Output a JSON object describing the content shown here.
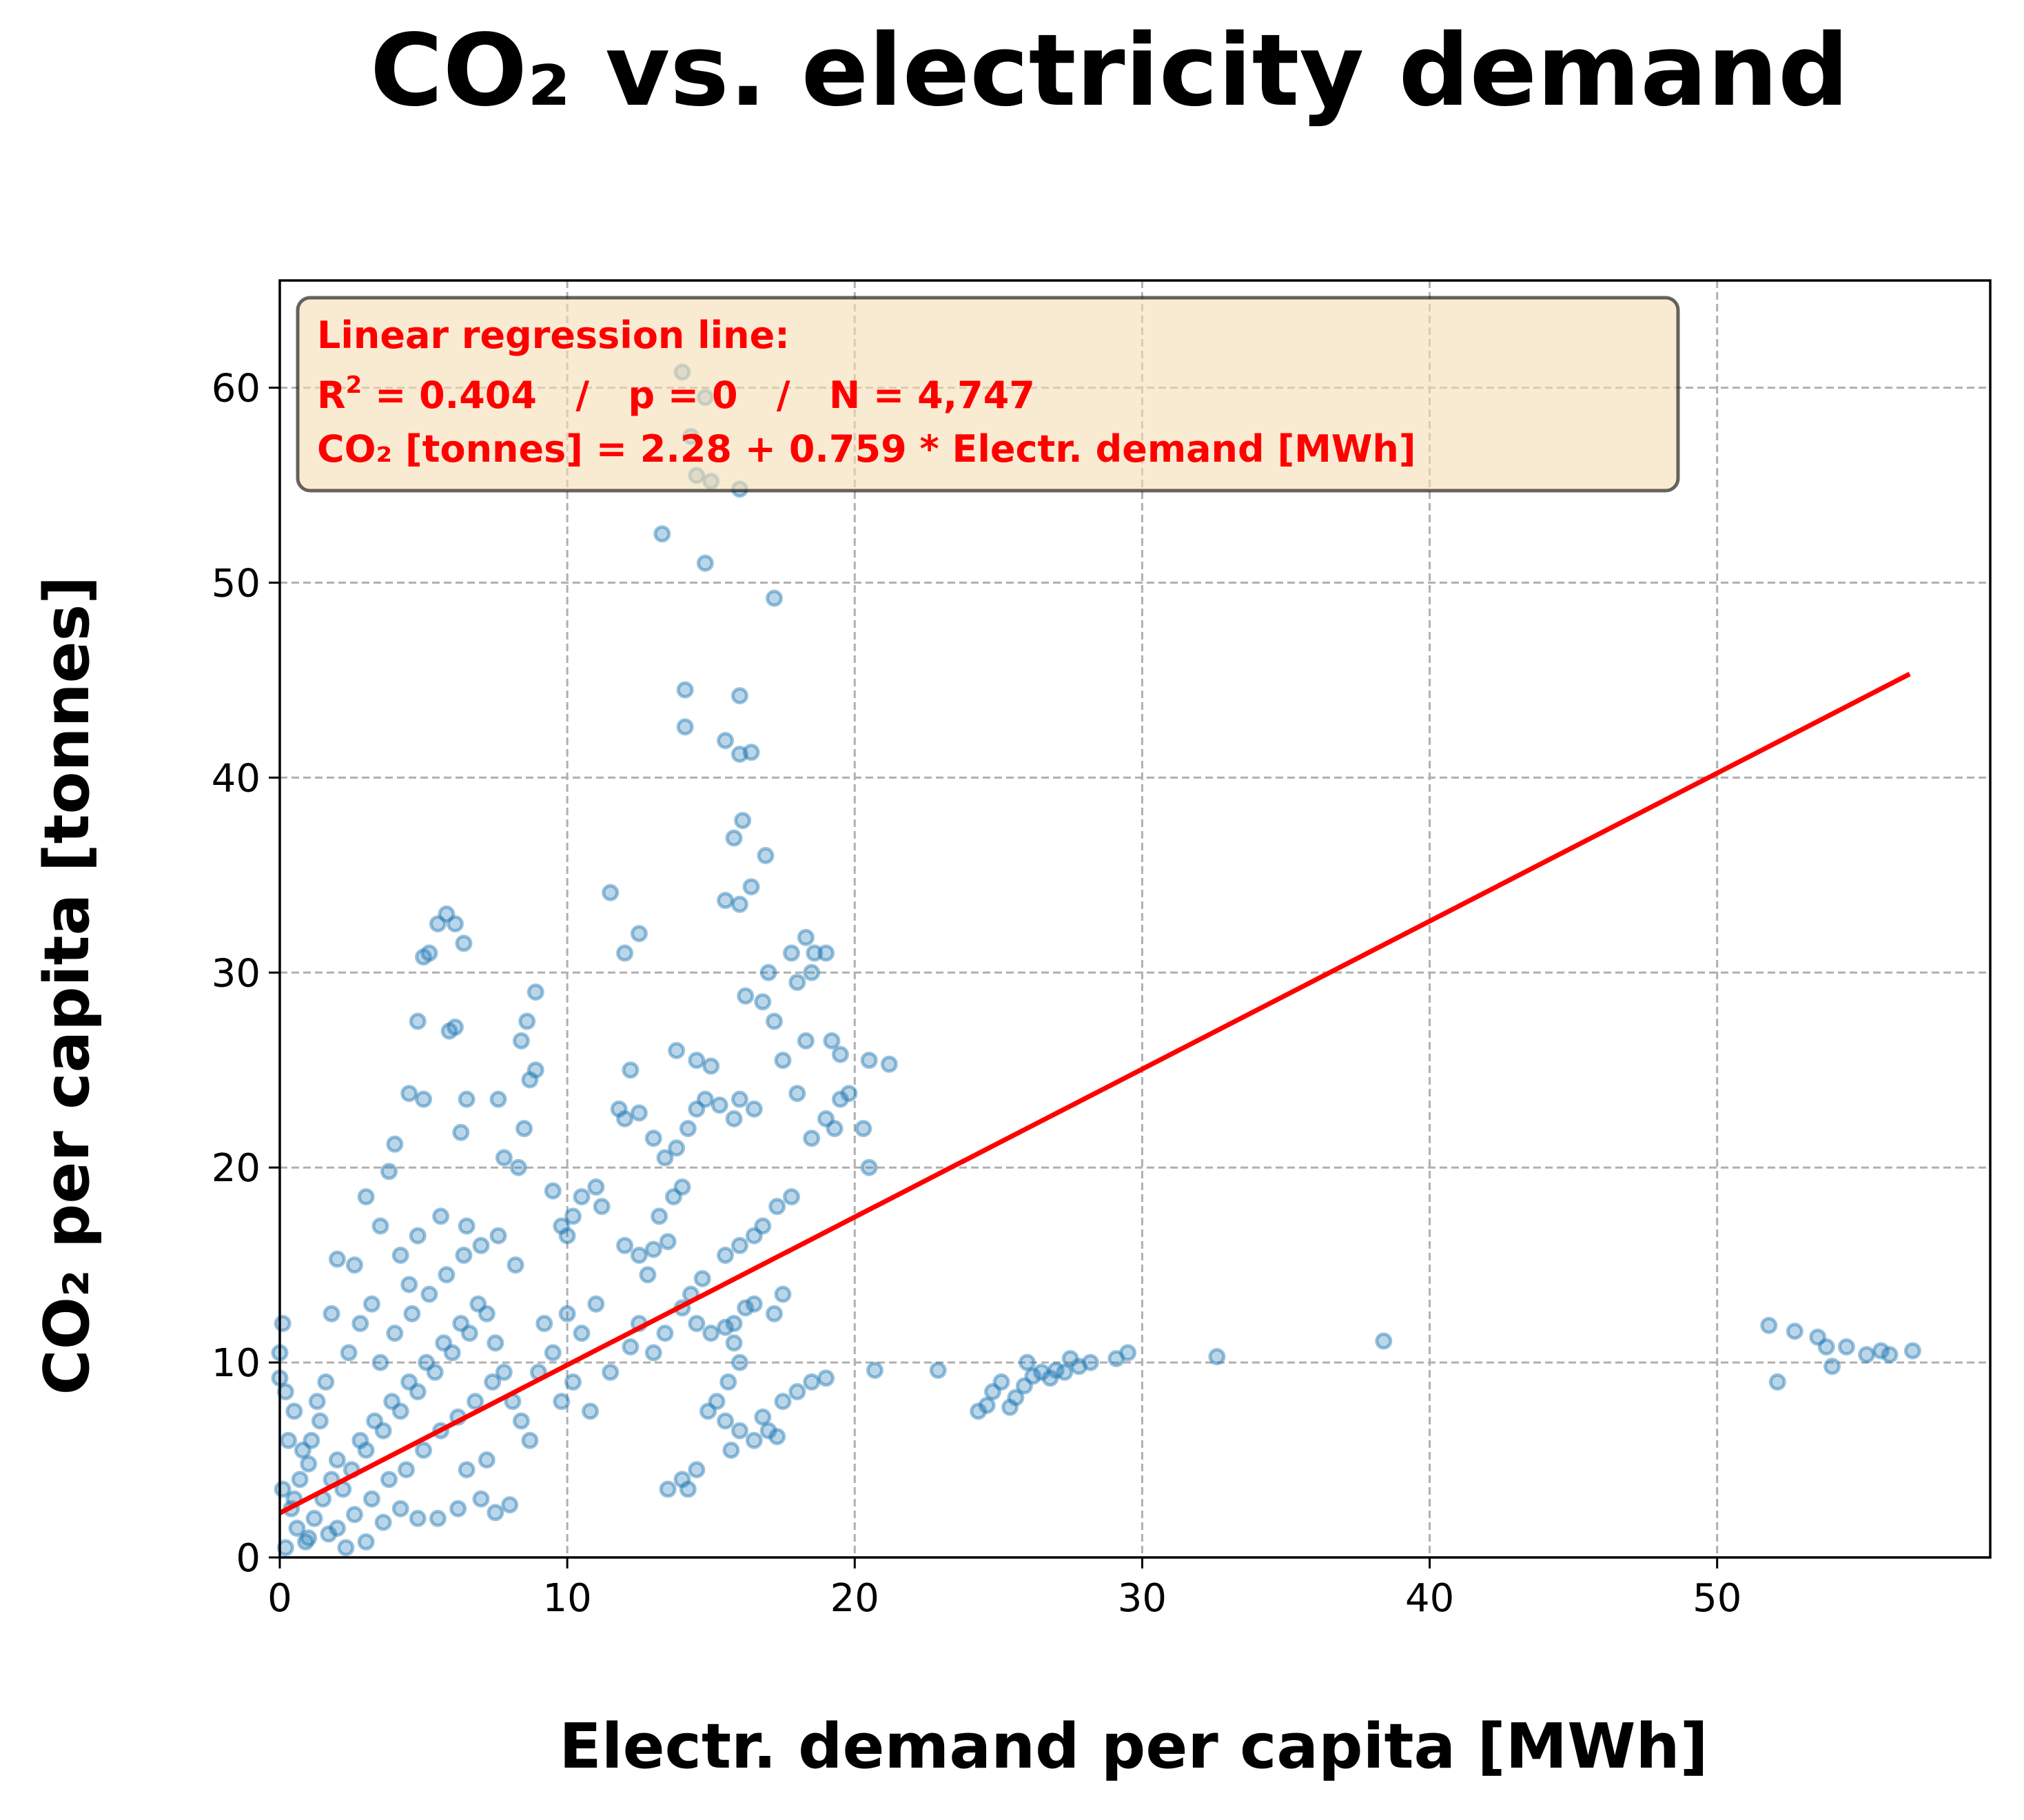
{
  "chart_data": {
    "type": "scatter",
    "title": "CO₂ vs. electricity demand",
    "xlabel": "Electr. demand per capita [MWh]",
    "ylabel": "CO₂ per capita [tonnes]",
    "xlim": [
      0,
      59.5
    ],
    "ylim": [
      0,
      65.5
    ],
    "xticks": [
      "0",
      "10",
      "20",
      "30",
      "40",
      "50"
    ],
    "yticks": [
      "0",
      "10",
      "20",
      "30",
      "40",
      "50",
      "60"
    ],
    "grid": true,
    "colors": {
      "points": "#1f77b4",
      "regression": "#ff0000",
      "annotation_box": "#f5deb3"
    },
    "annotation": {
      "line1": "Linear regression line:",
      "r2_prefix": "R",
      "r2_exp": "2",
      "line2_rest": " = 0.404   /   p = 0   /   N = 4,747",
      "line3": "CO₂ [tonnes] = 2.28 + 0.759 * Electr. demand [MWh]",
      "placement": "top-left"
    },
    "regression": {
      "intercept": 2.28,
      "slope": 0.759,
      "x_range": [
        0,
        56.7
      ]
    },
    "series": [
      {
        "type": "scatter",
        "points": [
          [
            0.1,
            12.0
          ],
          [
            0.0,
            10.5
          ],
          [
            0.0,
            9.2
          ],
          [
            0.2,
            8.5
          ],
          [
            0.5,
            7.5
          ],
          [
            0.3,
            6.0
          ],
          [
            0.8,
            5.5
          ],
          [
            0.1,
            3.5
          ],
          [
            0.4,
            2.5
          ],
          [
            0.6,
            1.5
          ],
          [
            0.2,
            0.5
          ],
          [
            0.9,
            0.8
          ],
          [
            1.2,
            2.0
          ],
          [
            1.5,
            3.0
          ],
          [
            1.8,
            4.0
          ],
          [
            1.0,
            4.8
          ],
          [
            2.0,
            5.0
          ],
          [
            2.2,
            3.5
          ],
          [
            2.5,
            4.5
          ],
          [
            2.8,
            6.0
          ],
          [
            3.0,
            5.5
          ],
          [
            3.3,
            7.0
          ],
          [
            3.6,
            6.5
          ],
          [
            3.9,
            8.0
          ],
          [
            4.2,
            7.5
          ],
          [
            4.5,
            9.0
          ],
          [
            4.8,
            8.5
          ],
          [
            5.1,
            10.0
          ],
          [
            5.4,
            9.5
          ],
          [
            5.7,
            11.0
          ],
          [
            6.0,
            10.5
          ],
          [
            6.3,
            12.0
          ],
          [
            6.6,
            11.5
          ],
          [
            6.9,
            13.0
          ],
          [
            7.2,
            12.5
          ],
          [
            7.5,
            11.0
          ],
          [
            7.8,
            9.5
          ],
          [
            8.1,
            8.0
          ],
          [
            8.4,
            7.0
          ],
          [
            8.7,
            6.0
          ],
          [
            2.0,
            1.5
          ],
          [
            2.6,
            2.2
          ],
          [
            3.2,
            3.0
          ],
          [
            3.8,
            4.0
          ],
          [
            4.4,
            4.5
          ],
          [
            5.0,
            5.5
          ],
          [
            5.6,
            6.5
          ],
          [
            6.2,
            7.2
          ],
          [
            6.8,
            8.0
          ],
          [
            7.4,
            9.0
          ],
          [
            3.5,
            10.0
          ],
          [
            4.0,
            11.5
          ],
          [
            4.6,
            12.5
          ],
          [
            5.2,
            13.5
          ],
          [
            5.8,
            14.5
          ],
          [
            6.4,
            15.5
          ],
          [
            7.0,
            16.0
          ],
          [
            7.6,
            16.5
          ],
          [
            8.2,
            15.0
          ],
          [
            4.8,
            16.5
          ],
          [
            5.6,
            17.5
          ],
          [
            6.5,
            17.0
          ],
          [
            2.8,
            12.0
          ],
          [
            2.4,
            10.5
          ],
          [
            1.6,
            9.0
          ],
          [
            1.3,
            8.0
          ],
          [
            2.0,
            15.3
          ],
          [
            2.6,
            15.0
          ],
          [
            3.2,
            13.0
          ],
          [
            1.8,
            12.5
          ],
          [
            9.0,
            9.5
          ],
          [
            9.5,
            10.5
          ],
          [
            9.2,
            12.0
          ],
          [
            10.0,
            12.5
          ],
          [
            10.5,
            11.5
          ],
          [
            11.0,
            13.0
          ],
          [
            10.2,
            9.0
          ],
          [
            9.8,
            8.0
          ],
          [
            11.5,
            9.5
          ],
          [
            10.8,
            7.5
          ],
          [
            10.5,
            18.5
          ],
          [
            11.0,
            19.0
          ],
          [
            11.2,
            18.0
          ],
          [
            10.2,
            17.5
          ],
          [
            9.8,
            17.0
          ],
          [
            9.5,
            18.8
          ],
          [
            10.0,
            16.5
          ],
          [
            12.0,
            16.0
          ],
          [
            12.5,
            15.5
          ],
          [
            13.0,
            15.8
          ],
          [
            13.5,
            16.2
          ],
          [
            12.8,
            14.5
          ],
          [
            13.2,
            17.5
          ],
          [
            13.7,
            18.5
          ],
          [
            14.0,
            19.0
          ],
          [
            12.0,
            22.5
          ],
          [
            12.5,
            22.8
          ],
          [
            13.0,
            21.5
          ],
          [
            13.4,
            20.5
          ],
          [
            13.8,
            21.0
          ],
          [
            14.2,
            22.0
          ],
          [
            14.5,
            23.0
          ],
          [
            14.8,
            23.5
          ],
          [
            15.3,
            23.2
          ],
          [
            11.8,
            23.0
          ],
          [
            12.2,
            25.0
          ],
          [
            11.5,
            34.1
          ],
          [
            12.0,
            31.0
          ],
          [
            12.5,
            32.0
          ],
          [
            13.8,
            26.0
          ],
          [
            14.5,
            25.5
          ],
          [
            15.0,
            25.2
          ],
          [
            5.5,
            32.5
          ],
          [
            5.8,
            33.0
          ],
          [
            6.1,
            32.5
          ],
          [
            6.4,
            31.5
          ],
          [
            5.2,
            31.0
          ],
          [
            5.0,
            30.8
          ],
          [
            5.9,
            27.0
          ],
          [
            6.1,
            27.2
          ],
          [
            4.8,
            27.5
          ],
          [
            4.5,
            23.8
          ],
          [
            5.0,
            23.5
          ],
          [
            6.5,
            23.5
          ],
          [
            6.3,
            21.8
          ],
          [
            7.8,
            20.5
          ],
          [
            8.3,
            20.0
          ],
          [
            8.5,
            22.0
          ],
          [
            8.7,
            24.5
          ],
          [
            8.9,
            25.0
          ],
          [
            8.6,
            27.5
          ],
          [
            8.9,
            29.0
          ],
          [
            8.4,
            26.5
          ],
          [
            7.6,
            23.5
          ],
          [
            4.0,
            21.2
          ],
          [
            3.8,
            19.8
          ],
          [
            4.2,
            15.5
          ],
          [
            4.5,
            14.0
          ],
          [
            3.0,
            18.5
          ],
          [
            3.5,
            17.0
          ],
          [
            14.5,
            55.5
          ],
          [
            14.0,
            60.8
          ],
          [
            14.8,
            59.5
          ],
          [
            14.3,
            57.5
          ],
          [
            15.0,
            55.2
          ],
          [
            16.0,
            54.8
          ],
          [
            13.3,
            52.5
          ],
          [
            14.8,
            51.0
          ],
          [
            17.2,
            49.2
          ],
          [
            14.1,
            44.5
          ],
          [
            14.1,
            42.6
          ],
          [
            15.5,
            41.9
          ],
          [
            16.0,
            41.2
          ],
          [
            16.4,
            41.3
          ],
          [
            16.0,
            44.2
          ],
          [
            16.1,
            37.8
          ],
          [
            15.8,
            36.9
          ],
          [
            16.9,
            36.0
          ],
          [
            16.4,
            34.4
          ],
          [
            16.0,
            33.5
          ],
          [
            15.5,
            33.7
          ],
          [
            17.0,
            30.0
          ],
          [
            16.2,
            28.8
          ],
          [
            16.8,
            28.5
          ],
          [
            17.2,
            27.5
          ],
          [
            17.8,
            31.0
          ],
          [
            18.3,
            31.8
          ],
          [
            18.6,
            31.0
          ],
          [
            19.0,
            31.0
          ],
          [
            18.0,
            29.5
          ],
          [
            18.5,
            30.0
          ],
          [
            19.2,
            26.5
          ],
          [
            19.5,
            25.8
          ],
          [
            18.3,
            26.5
          ],
          [
            17.5,
            25.5
          ],
          [
            18.0,
            23.8
          ],
          [
            16.0,
            23.5
          ],
          [
            16.5,
            23.0
          ],
          [
            15.8,
            22.5
          ],
          [
            19.5,
            23.5
          ],
          [
            19.8,
            23.8
          ],
          [
            20.5,
            25.5
          ],
          [
            21.2,
            25.3
          ],
          [
            20.3,
            22.0
          ],
          [
            20.5,
            20.0
          ],
          [
            19.0,
            22.5
          ],
          [
            19.3,
            22.0
          ],
          [
            18.5,
            21.5
          ],
          [
            17.8,
            18.5
          ],
          [
            17.3,
            18.0
          ],
          [
            16.5,
            16.5
          ],
          [
            16.0,
            16.0
          ],
          [
            15.5,
            15.5
          ],
          [
            16.8,
            17.0
          ],
          [
            14.7,
            14.3
          ],
          [
            14.3,
            13.5
          ],
          [
            14.0,
            12.8
          ],
          [
            14.5,
            12.0
          ],
          [
            15.0,
            11.5
          ],
          [
            15.5,
            11.8
          ],
          [
            15.8,
            11.0
          ],
          [
            16.0,
            10.0
          ],
          [
            15.6,
            9.0
          ],
          [
            15.2,
            8.0
          ],
          [
            14.9,
            7.5
          ],
          [
            15.5,
            7.0
          ],
          [
            16.0,
            6.5
          ],
          [
            16.5,
            6.0
          ],
          [
            17.0,
            6.5
          ],
          [
            17.3,
            6.2
          ],
          [
            16.8,
            7.2
          ],
          [
            15.7,
            5.5
          ],
          [
            14.5,
            4.5
          ],
          [
            14.0,
            4.0
          ],
          [
            13.5,
            3.5
          ],
          [
            14.2,
            3.5
          ],
          [
            17.5,
            8.0
          ],
          [
            18.0,
            8.5
          ],
          [
            18.5,
            9.0
          ],
          [
            19.0,
            9.2
          ],
          [
            17.2,
            12.5
          ],
          [
            17.5,
            13.5
          ],
          [
            16.2,
            12.8
          ],
          [
            16.5,
            13.0
          ],
          [
            15.8,
            12.0
          ],
          [
            13.0,
            10.5
          ],
          [
            13.4,
            11.5
          ],
          [
            12.5,
            12.0
          ],
          [
            12.2,
            10.8
          ],
          [
            20.7,
            9.6
          ],
          [
            22.9,
            9.6
          ],
          [
            24.3,
            7.5
          ],
          [
            24.6,
            7.8
          ],
          [
            24.8,
            8.5
          ],
          [
            25.1,
            9.0
          ],
          [
            25.4,
            7.7
          ],
          [
            25.6,
            8.2
          ],
          [
            25.9,
            8.8
          ],
          [
            26.2,
            9.3
          ],
          [
            26.0,
            10.0
          ],
          [
            26.5,
            9.5
          ],
          [
            26.8,
            9.2
          ],
          [
            27.0,
            9.6
          ],
          [
            27.3,
            9.5
          ],
          [
            27.5,
            10.2
          ],
          [
            27.8,
            9.8
          ],
          [
            28.2,
            10.0
          ],
          [
            29.1,
            10.2
          ],
          [
            29.5,
            10.5
          ],
          [
            32.6,
            10.3
          ],
          [
            38.4,
            11.1
          ],
          [
            51.8,
            11.9
          ],
          [
            52.1,
            9.0
          ],
          [
            52.7,
            11.6
          ],
          [
            53.5,
            11.3
          ],
          [
            53.8,
            10.8
          ],
          [
            54.0,
            9.8
          ],
          [
            54.5,
            10.8
          ],
          [
            55.2,
            10.4
          ],
          [
            55.7,
            10.6
          ],
          [
            56.0,
            10.4
          ],
          [
            56.8,
            10.6
          ],
          [
            1.1,
            6.0
          ],
          [
            1.4,
            7.0
          ],
          [
            0.7,
            4.0
          ],
          [
            0.5,
            3.0
          ],
          [
            1.0,
            1.0
          ],
          [
            1.7,
            1.2
          ],
          [
            2.3,
            0.5
          ],
          [
            3.0,
            0.8
          ],
          [
            3.6,
            1.8
          ],
          [
            4.2,
            2.5
          ],
          [
            4.8,
            2.0
          ],
          [
            5.5,
            2.0
          ],
          [
            6.2,
            2.5
          ],
          [
            7.0,
            3.0
          ],
          [
            7.5,
            2.3
          ],
          [
            8.0,
            2.7
          ],
          [
            6.5,
            4.5
          ],
          [
            7.2,
            5.0
          ]
        ]
      }
    ]
  }
}
